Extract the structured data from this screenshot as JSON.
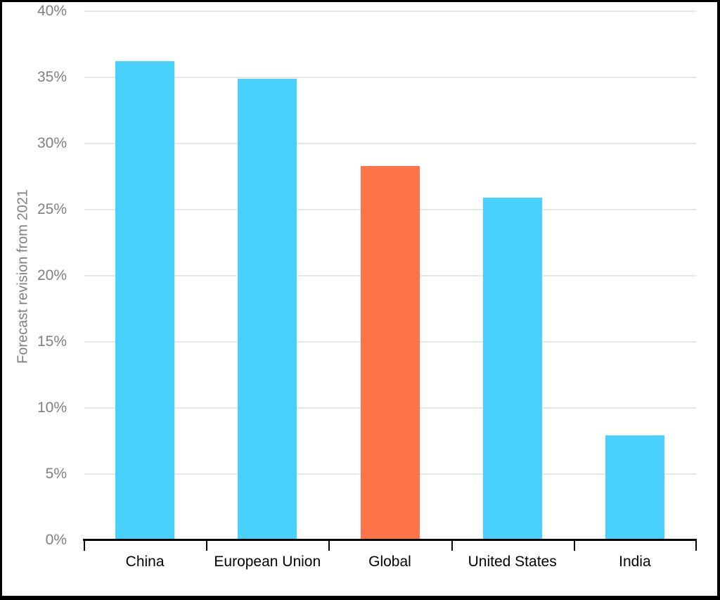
{
  "chart_data": {
    "type": "bar",
    "title": "",
    "categories": [
      "China",
      "European Union",
      "Global",
      "United States",
      "India"
    ],
    "values": [
      36.2,
      34.9,
      28.3,
      25.9,
      7.9
    ],
    "bar_colors": [
      "#47d1fc",
      "#47d1fc",
      "#fc7448",
      "#47d1fc",
      "#47d1fc"
    ],
    "highlighted_category": "Global",
    "xlabel": "",
    "ylabel": "Forecast revision from 2021",
    "ylim": [
      0,
      40
    ],
    "ytick_step": 5,
    "ytick_labels": [
      "0%",
      "5%",
      "10%",
      "15%",
      "20%",
      "25%",
      "30%",
      "35%",
      "40%"
    ],
    "grid": "horizontal",
    "legend": "none",
    "colors": {
      "bar_default": "#47d1fc",
      "bar_highlight": "#fc7448",
      "gridline": "#e7e7e7",
      "tick_label": "#808080",
      "axis_label": "#808080",
      "category_label": "#000000",
      "axis_line": "#000000",
      "background": "#ffffff",
      "frame_border": "#000000"
    }
  }
}
